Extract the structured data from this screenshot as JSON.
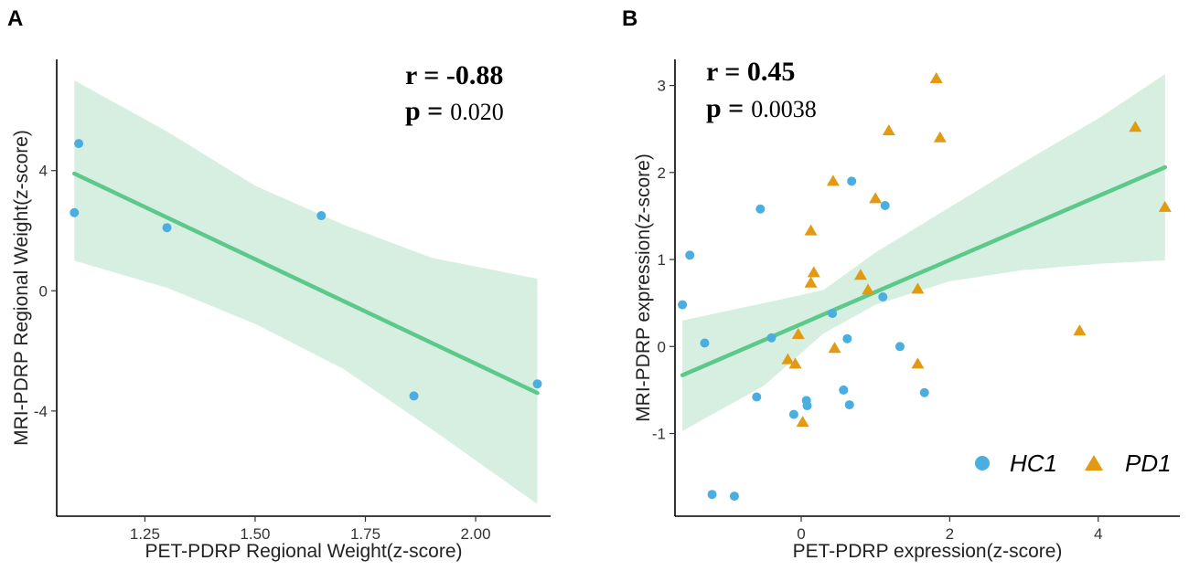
{
  "colors": {
    "hc": "#4AAEE0",
    "pd": "#E19A12",
    "fit_line": "#5CC98A",
    "ci_band": "#CDEBD9"
  },
  "chart_data": [
    {
      "panel": "A",
      "type": "scatter",
      "xlabel": "PET-PDRP Regional Weight(z-score)",
      "ylabel": "MRI-PDRP Regional Weight(z-score)",
      "xlim": [
        1.05,
        2.17
      ],
      "ylim": [
        -7.5,
        7.7
      ],
      "xticks": [
        1.25,
        1.5,
        1.75,
        2.0
      ],
      "xtick_labels": [
        "1.25",
        "1.50",
        "1.75",
        "2.00"
      ],
      "yticks": [
        4,
        0,
        -4
      ],
      "ytick_labels": [
        "4",
        "0",
        "-4"
      ],
      "r_label": "r = -0.88",
      "p_label": "p =",
      "p_value": "0.020",
      "points": [
        {
          "x": 1.1,
          "y": 4.9
        },
        {
          "x": 1.09,
          "y": 2.6
        },
        {
          "x": 1.3,
          "y": 2.1
        },
        {
          "x": 1.65,
          "y": 2.5
        },
        {
          "x": 1.86,
          "y": -3.5
        },
        {
          "x": 2.14,
          "y": -3.1
        }
      ],
      "fit": {
        "x": [
          1.09,
          2.14
        ],
        "y": [
          3.9,
          -3.4
        ]
      },
      "ci": {
        "x": [
          1.09,
          1.3,
          1.5,
          1.7,
          1.9,
          2.14
        ],
        "upper": [
          7.0,
          5.3,
          3.5,
          2.2,
          1.1,
          0.4
        ],
        "lower": [
          1.0,
          0.1,
          -1.1,
          -2.6,
          -4.6,
          -7.1
        ]
      }
    },
    {
      "panel": "B",
      "type": "scatter",
      "xlabel": "PET-PDRP expression(z-score)",
      "ylabel": "MRI-PDRP expression(z-score)",
      "xlim": [
        -1.7,
        5.1
      ],
      "ylim": [
        -1.95,
        3.3
      ],
      "xticks": [
        0,
        2,
        4
      ],
      "xtick_labels": [
        "0",
        "2",
        "4"
      ],
      "yticks": [
        3,
        2,
        1,
        0,
        -1
      ],
      "ytick_labels": [
        "3",
        "2",
        "1",
        "0",
        "-1"
      ],
      "r_label": "r = 0.45",
      "p_label": "p =",
      "p_value": "0.0038",
      "legend": [
        "HC1",
        "PD1"
      ],
      "series": [
        {
          "name": "HC1",
          "marker": "circle",
          "points": [
            {
              "x": -1.6,
              "y": 0.48
            },
            {
              "x": -1.5,
              "y": 1.05
            },
            {
              "x": -1.3,
              "y": 0.04
            },
            {
              "x": -1.2,
              "y": -1.7
            },
            {
              "x": -0.9,
              "y": -1.72
            },
            {
              "x": -0.55,
              "y": 1.58
            },
            {
              "x": -0.6,
              "y": -0.58
            },
            {
              "x": -0.4,
              "y": 0.1
            },
            {
              "x": -0.1,
              "y": -0.78
            },
            {
              "x": 0.07,
              "y": -0.62
            },
            {
              "x": 0.08,
              "y": -0.68
            },
            {
              "x": 0.42,
              "y": 0.38
            },
            {
              "x": 0.57,
              "y": -0.5
            },
            {
              "x": 0.62,
              "y": 0.09
            },
            {
              "x": 0.68,
              "y": 1.9
            },
            {
              "x": 0.65,
              "y": -0.67
            },
            {
              "x": 1.1,
              "y": 0.57
            },
            {
              "x": 1.13,
              "y": 1.62
            },
            {
              "x": 1.33,
              "y": 0.0
            },
            {
              "x": 1.66,
              "y": -0.53
            }
          ]
        },
        {
          "name": "PD1",
          "marker": "triangle",
          "points": [
            {
              "x": 0.43,
              "y": 1.9
            },
            {
              "x": 0.13,
              "y": 1.33
            },
            {
              "x": 0.17,
              "y": 0.85
            },
            {
              "x": 0.13,
              "y": 0.73
            },
            {
              "x": -0.18,
              "y": -0.15
            },
            {
              "x": -0.08,
              "y": -0.2
            },
            {
              "x": -0.04,
              "y": 0.14
            },
            {
              "x": 0.02,
              "y": -0.87
            },
            {
              "x": 0.45,
              "y": -0.02
            },
            {
              "x": 0.8,
              "y": 0.82
            },
            {
              "x": 0.9,
              "y": 0.65
            },
            {
              "x": 1.0,
              "y": 1.7
            },
            {
              "x": 1.18,
              "y": 2.48
            },
            {
              "x": 1.57,
              "y": 0.66
            },
            {
              "x": 1.57,
              "y": -0.2
            },
            {
              "x": 1.82,
              "y": 3.08
            },
            {
              "x": 1.87,
              "y": 2.4
            },
            {
              "x": 3.75,
              "y": 0.18
            },
            {
              "x": 4.5,
              "y": 2.52
            },
            {
              "x": 4.9,
              "y": 1.6
            }
          ]
        }
      ],
      "fit": {
        "x": [
          -1.6,
          4.9
        ],
        "y": [
          -0.33,
          2.06
        ]
      },
      "ci": {
        "x": [
          -1.6,
          -0.5,
          0.3,
          1.0,
          2.0,
          3.0,
          4.0,
          4.9
        ],
        "upper": [
          0.3,
          0.5,
          0.65,
          1.08,
          1.6,
          2.12,
          2.62,
          3.13
        ],
        "lower": [
          -0.97,
          -0.45,
          0.15,
          0.48,
          0.75,
          0.88,
          0.95,
          0.99
        ]
      }
    }
  ]
}
